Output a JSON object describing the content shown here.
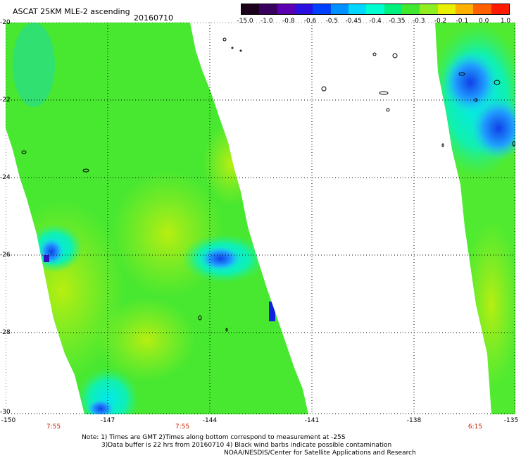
{
  "header": {
    "title": "ASCAT 25KM MLE-2 ascending",
    "date": "20160710"
  },
  "colorbar": {
    "labels": [
      "-15.0",
      "-1.0",
      "-0.8",
      "-0.6",
      "-0.5",
      "-0.45",
      "-0.4",
      "-0.35",
      "-0.3",
      "-0.2",
      "-0.1",
      "0.0",
      "1.0"
    ],
    "colors": [
      "#1a001a",
      "#3a0060",
      "#5a00b0",
      "#2a10e0",
      "#0040ff",
      "#0090ff",
      "#00d8ff",
      "#00ffd0",
      "#00f080",
      "#40e830",
      "#90ee20",
      "#e8f000",
      "#ffb000",
      "#ff6000",
      "#ff1a00"
    ]
  },
  "axes": {
    "y_labels": [
      "-20",
      "-22",
      "-24",
      "-26",
      "-28",
      "-30"
    ],
    "x_labels": [
      "-150",
      "-147",
      "-144",
      "-141",
      "-138",
      "-135"
    ],
    "time_labels": [
      "7:55",
      "7:55",
      "6:15"
    ]
  },
  "notes": {
    "line1": "Note: 1) Times are GMT 2)Times along bottom correspond to measurement at -25S",
    "line2": "3)Data buffer is 22 hrs from 20160710 4) Black wind barbs indicate possible contamination",
    "line3": "NOAA/NESDIS/Center for Satellite Applications and Research"
  }
}
